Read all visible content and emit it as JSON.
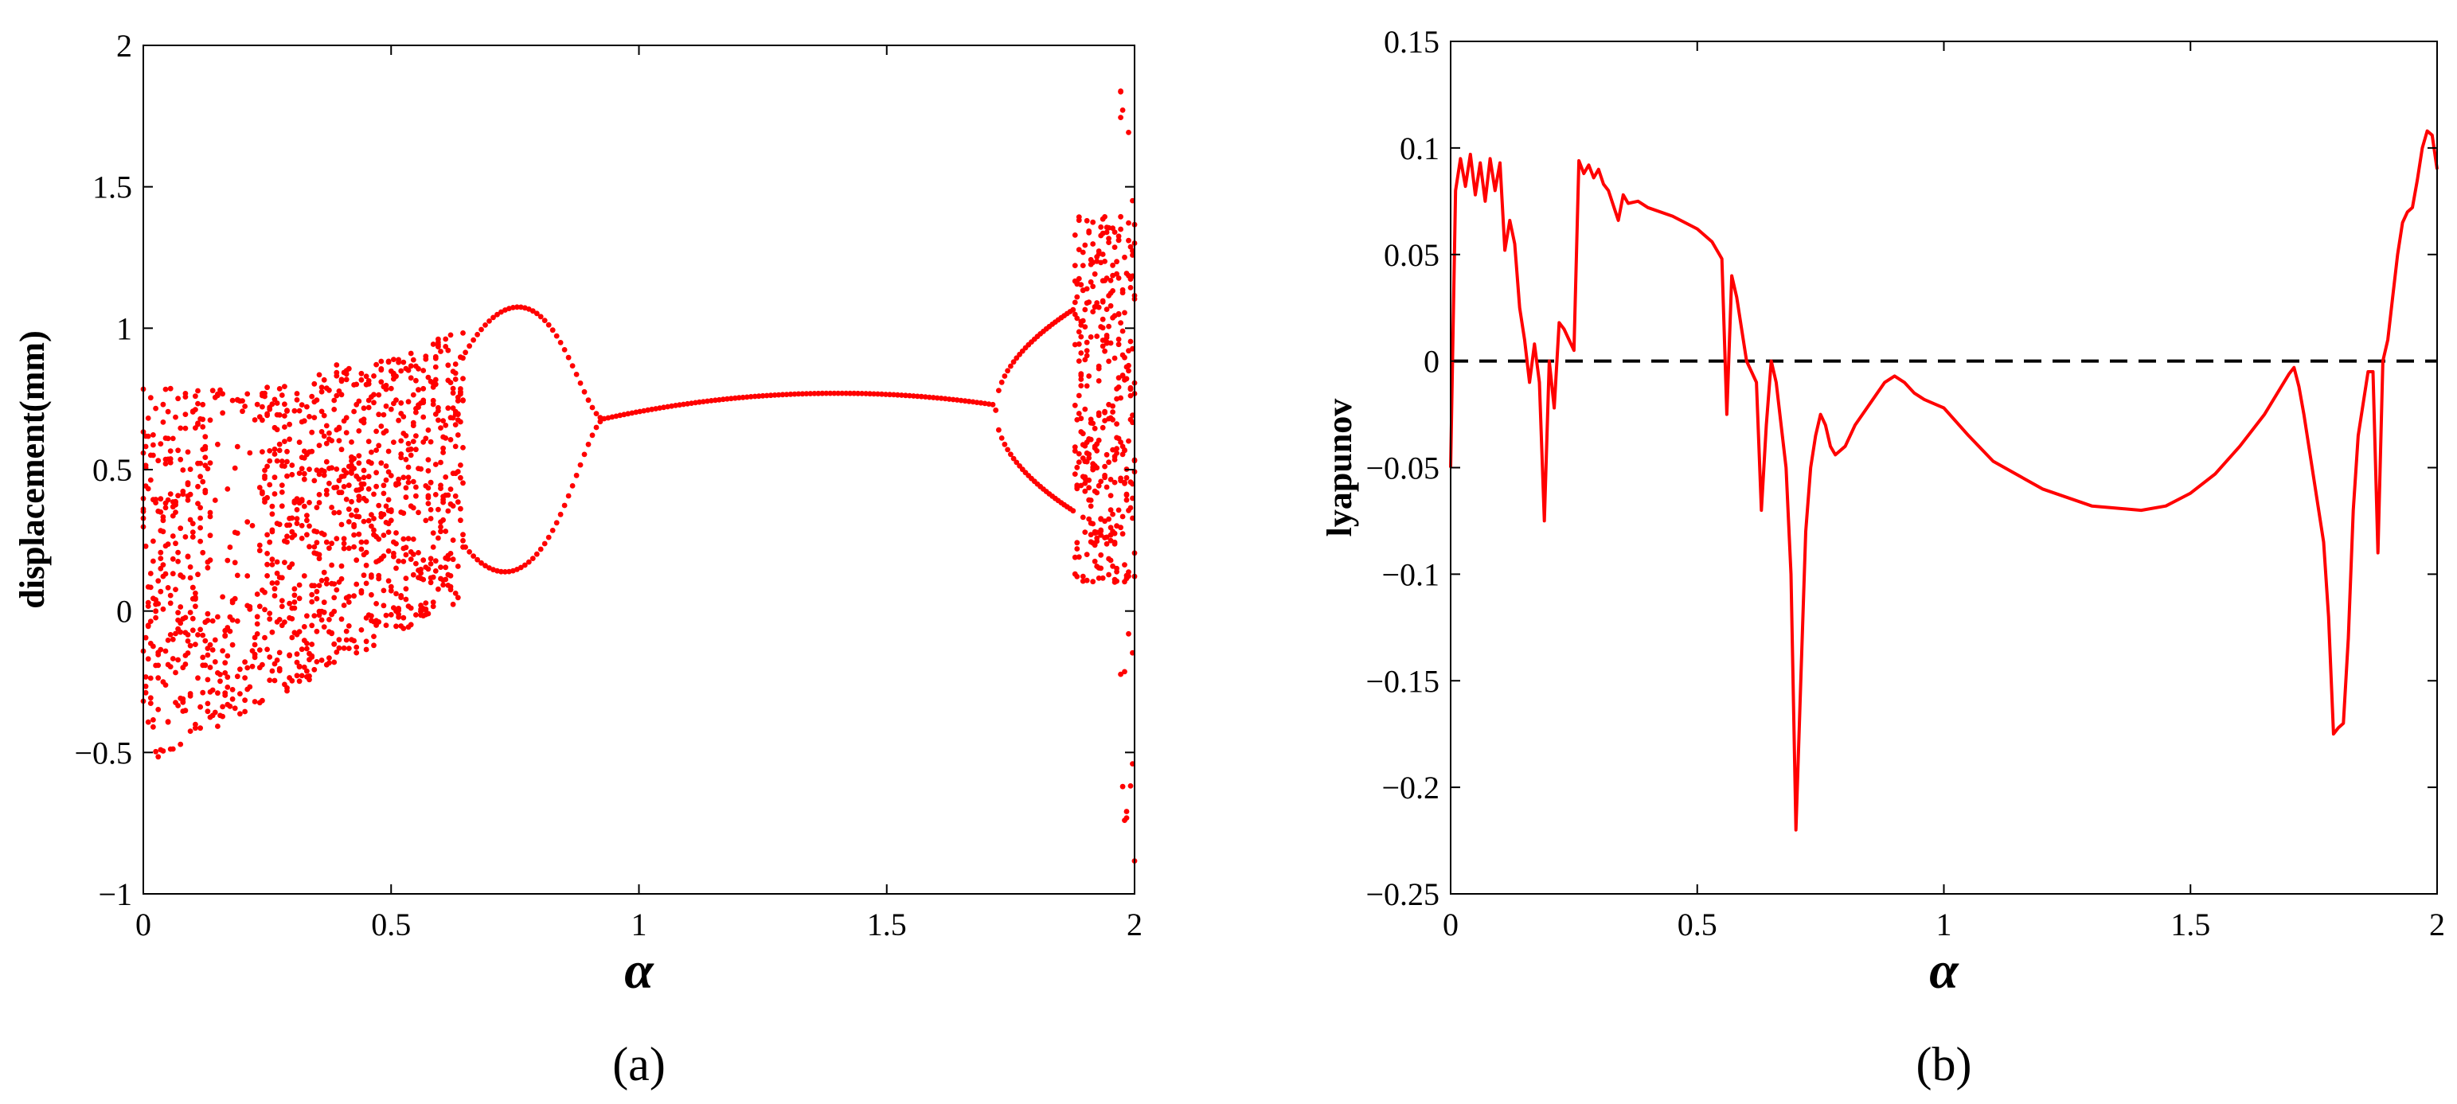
{
  "chart_data": [
    {
      "panel": "(a)",
      "type": "scatter",
      "xlabel": "α",
      "ylabel": "displacement(mm)",
      "xlim": [
        0,
        2
      ],
      "ylim": [
        -1,
        2
      ],
      "xticks": [
        "0",
        "0.5",
        "1",
        "1.5",
        "2"
      ],
      "yticks": [
        "−1",
        "−0.5",
        "0",
        "0.5",
        "1",
        "1.5",
        "2"
      ],
      "color": "#ff0000",
      "grid": false,
      "regions": [
        {
          "range": [
            0.0,
            0.65
          ],
          "behavior": "chaotic",
          "displacement_range": [
            -0.55,
            1.0
          ]
        },
        {
          "range": [
            0.65,
            0.93
          ],
          "behavior": "period-2",
          "branches_at_0.75": [
            1.12,
            0.09
          ]
        },
        {
          "range": [
            0.93,
            1.72
          ],
          "behavior": "period-1",
          "values": [
            [
              0.93,
              0.68
            ],
            [
              1.4,
              0.77
            ],
            [
              1.72,
              0.72
            ]
          ]
        },
        {
          "range": [
            1.72,
            1.88
          ],
          "behavior": "period-2",
          "branches_at_1.88": [
            1.05,
            0.36
          ]
        },
        {
          "range": [
            1.88,
            2.0
          ],
          "behavior": "chaotic",
          "displacement_range": [
            -0.95,
            1.92
          ]
        }
      ]
    },
    {
      "panel": "(b)",
      "type": "line",
      "xlabel": "α",
      "ylabel": "lyapunov",
      "xlim": [
        0,
        2
      ],
      "ylim": [
        -0.25,
        0.15
      ],
      "xticks": [
        "0",
        "0.5",
        "1",
        "1.5",
        "2"
      ],
      "yticks": [
        "−0.25",
        "−0.2",
        "−0.15",
        "−0.1",
        "−0.05",
        "0",
        "0.05",
        "0.1",
        "0.15"
      ],
      "color": "#ff0000",
      "reference_line": {
        "y": 0,
        "style": "dashed",
        "color": "#000000"
      },
      "x": [
        0,
        0.01,
        0.02,
        0.03,
        0.04,
        0.05,
        0.06,
        0.07,
        0.08,
        0.09,
        0.1,
        0.11,
        0.12,
        0.13,
        0.14,
        0.15,
        0.16,
        0.17,
        0.18,
        0.19,
        0.2,
        0.21,
        0.22,
        0.23,
        0.24,
        0.25,
        0.26,
        0.27,
        0.28,
        0.29,
        0.3,
        0.31,
        0.32,
        0.34,
        0.35,
        0.36,
        0.38,
        0.4,
        0.45,
        0.5,
        0.53,
        0.55,
        0.56,
        0.57,
        0.58,
        0.6,
        0.62,
        0.63,
        0.64,
        0.65,
        0.66,
        0.67,
        0.68,
        0.69,
        0.7,
        0.71,
        0.72,
        0.73,
        0.74,
        0.75,
        0.76,
        0.77,
        0.78,
        0.8,
        0.82,
        0.85,
        0.88,
        0.9,
        0.92,
        0.94,
        0.96,
        0.98,
        1.0,
        1.05,
        1.1,
        1.2,
        1.3,
        1.4,
        1.45,
        1.5,
        1.55,
        1.6,
        1.65,
        1.7,
        1.71,
        1.72,
        1.73,
        1.74,
        1.75,
        1.76,
        1.77,
        1.78,
        1.79,
        1.8,
        1.81,
        1.82,
        1.83,
        1.84,
        1.85,
        1.86,
        1.87,
        1.88,
        1.89,
        1.9,
        1.91,
        1.92,
        1.93,
        1.94,
        1.95,
        1.96,
        1.97,
        1.98,
        1.99,
        2.0
      ],
      "y": [
        -0.05,
        0.08,
        0.095,
        0.082,
        0.097,
        0.078,
        0.093,
        0.075,
        0.095,
        0.08,
        0.093,
        0.052,
        0.066,
        0.055,
        0.025,
        0.01,
        -0.01,
        0.008,
        -0.01,
        -0.075,
        0.0,
        -0.022,
        0.018,
        0.015,
        0.01,
        0.005,
        0.094,
        0.088,
        0.092,
        0.086,
        0.09,
        0.083,
        0.08,
        0.066,
        0.078,
        0.074,
        0.075,
        0.072,
        0.068,
        0.062,
        0.056,
        0.048,
        -0.025,
        0.04,
        0.03,
        0.0,
        -0.01,
        -0.07,
        -0.03,
        0.0,
        -0.01,
        -0.03,
        -0.05,
        -0.1,
        -0.22,
        -0.15,
        -0.08,
        -0.05,
        -0.035,
        -0.025,
        -0.03,
        -0.04,
        -0.044,
        -0.04,
        -0.03,
        -0.02,
        -0.01,
        -0.007,
        -0.01,
        -0.015,
        -0.018,
        -0.02,
        -0.022,
        -0.035,
        -0.047,
        -0.06,
        -0.068,
        -0.07,
        -0.068,
        -0.062,
        -0.053,
        -0.04,
        -0.025,
        -0.006,
        -0.003,
        -0.012,
        -0.025,
        -0.04,
        -0.055,
        -0.07,
        -0.085,
        -0.12,
        -0.175,
        -0.172,
        -0.17,
        -0.13,
        -0.07,
        -0.035,
        -0.02,
        -0.005,
        -0.005,
        -0.09,
        0.0,
        0.01,
        0.03,
        0.05,
        0.065,
        0.07,
        0.072,
        0.085,
        0.1,
        0.108,
        0.106,
        0.09
      ]
    }
  ],
  "panel_labels": [
    "(a)",
    "(b)"
  ]
}
